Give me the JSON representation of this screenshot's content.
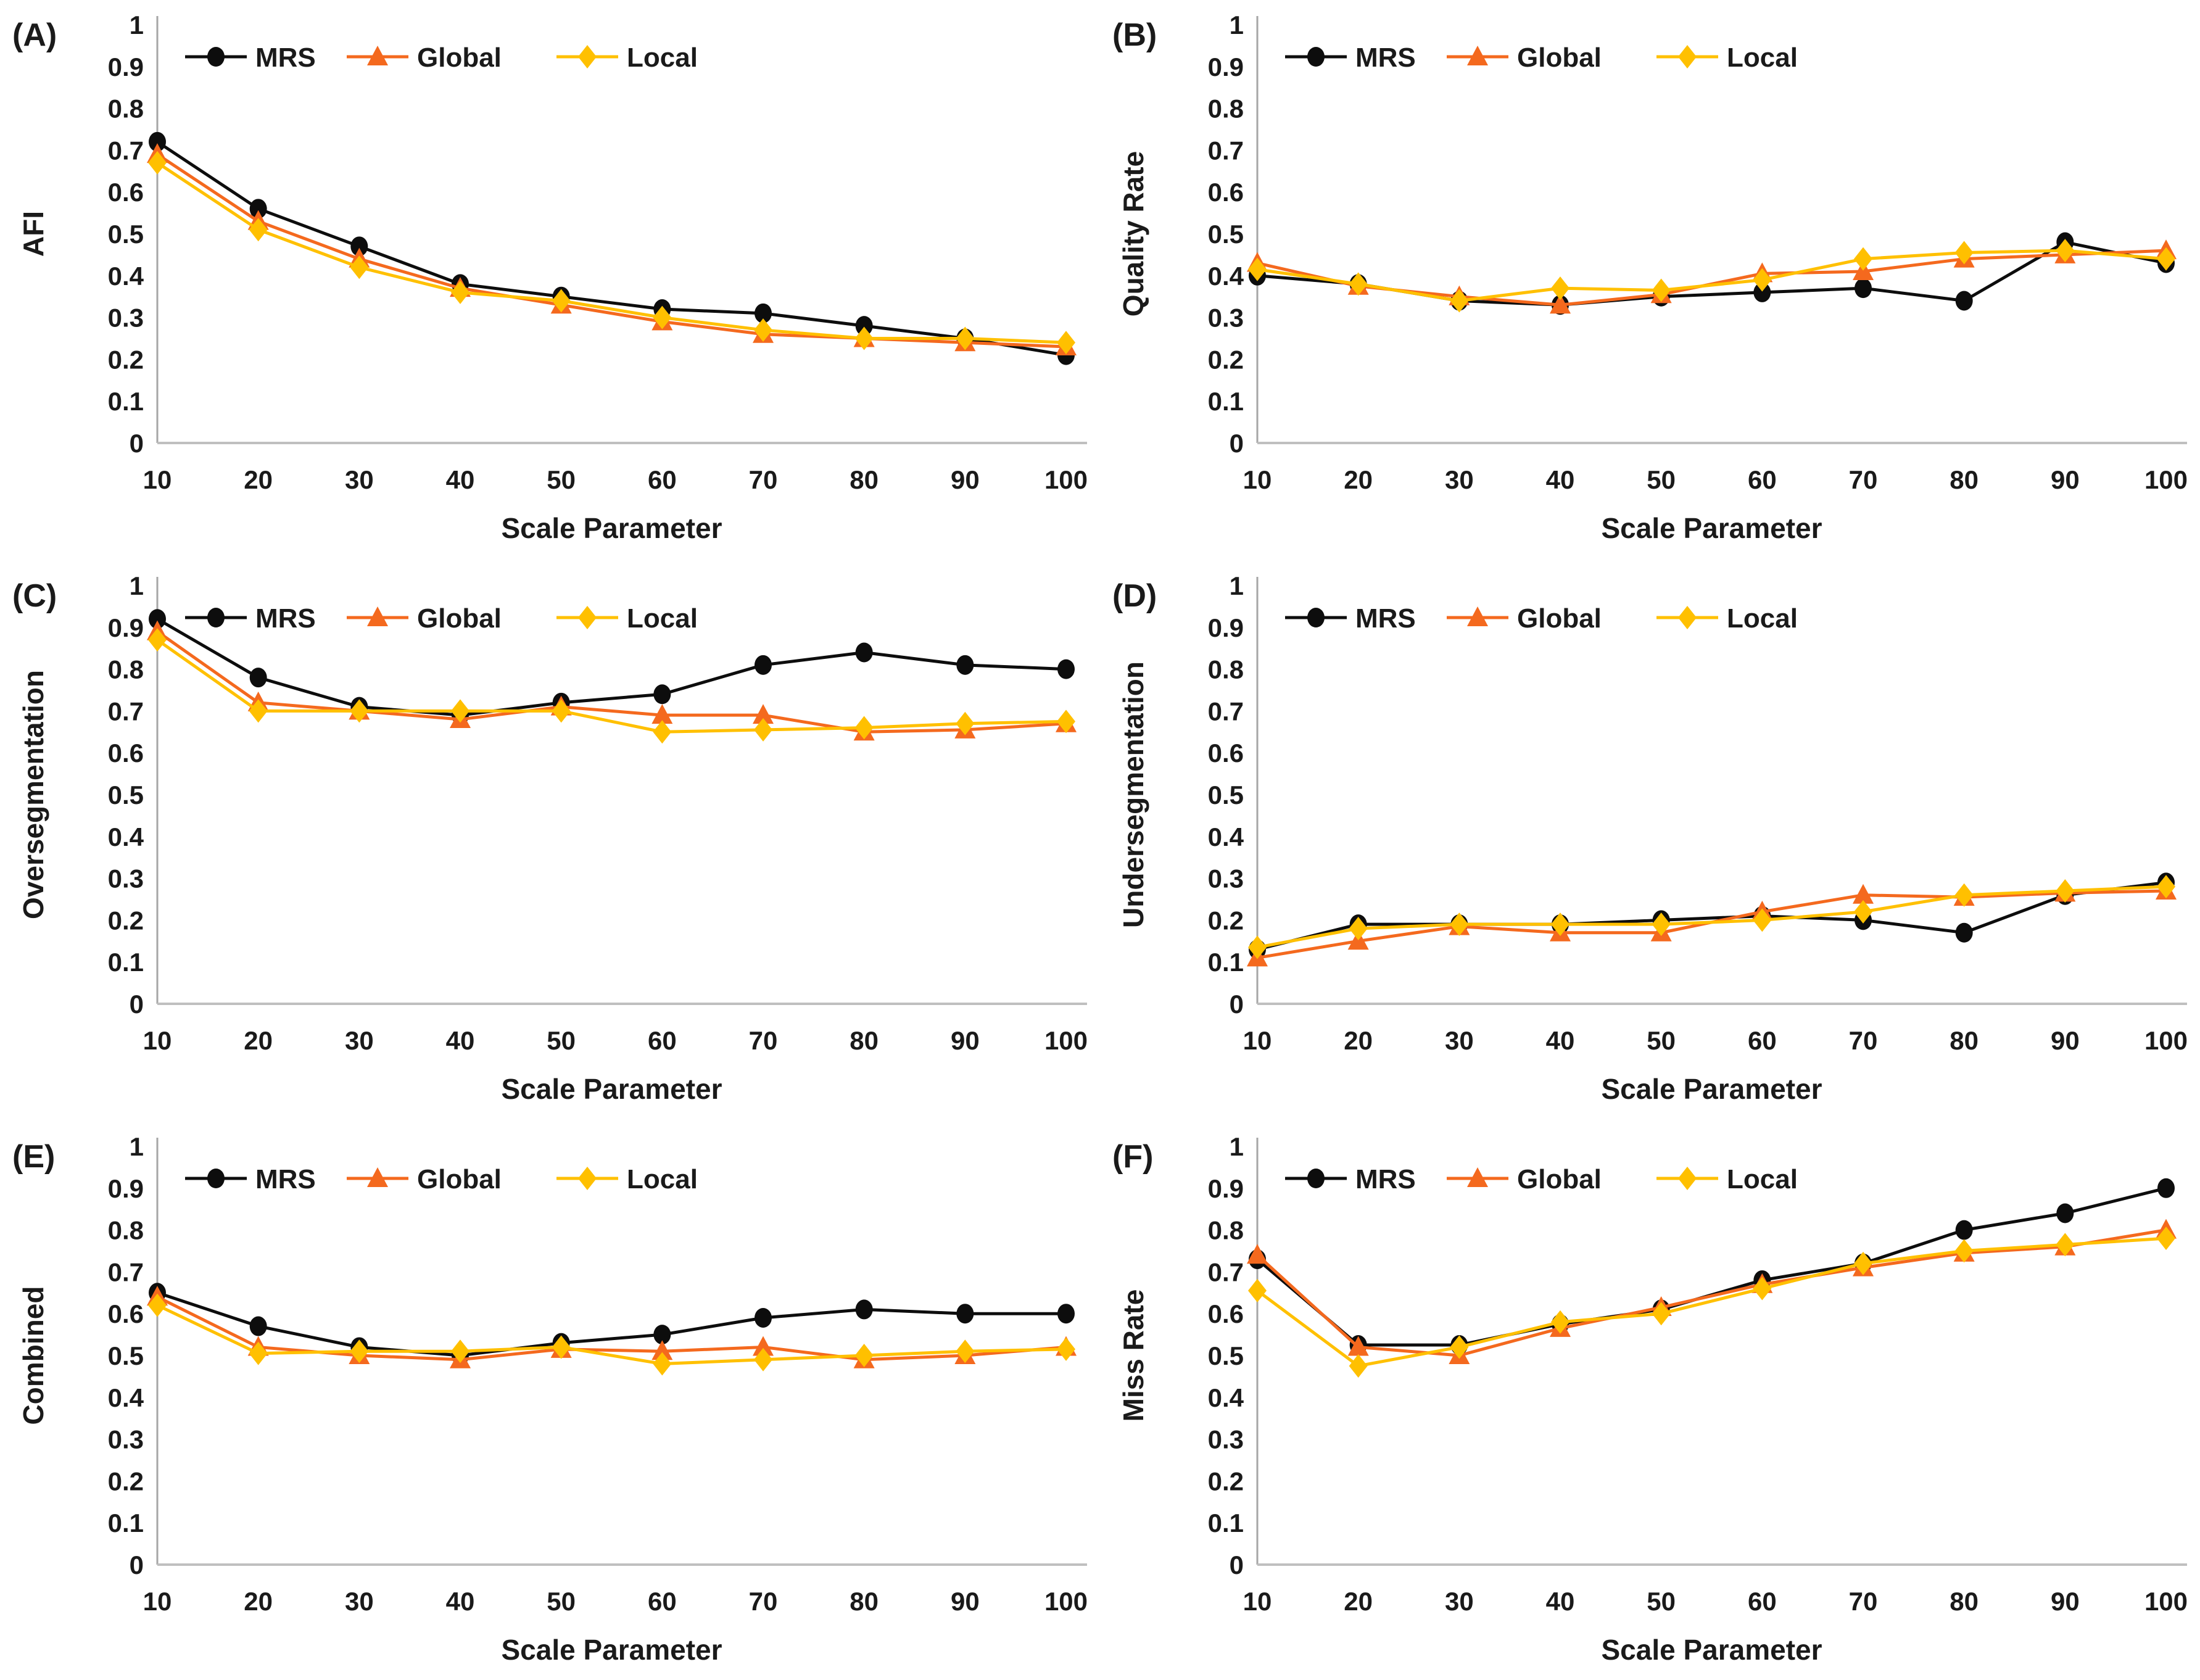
{
  "figure": {
    "xlabel": "Scale Parameter",
    "x_categories": [
      10,
      20,
      30,
      40,
      50,
      60,
      70,
      80,
      90,
      100
    ],
    "ylim": [
      0,
      1
    ],
    "ytick_step": 0.1,
    "grid": false,
    "legend_position": "top-inside",
    "colors": {
      "mrs": "#0d0d0d",
      "global": "#f4691e",
      "local": "#ffc000",
      "axis_line": "#a6a6a6",
      "baseline": "#bfbfbf",
      "text": "#1a1a1a"
    },
    "markers": {
      "mrs": "circle",
      "global": "triangle",
      "local": "diamond"
    },
    "legend_labels": [
      "MRS",
      "Global",
      "Local"
    ]
  },
  "chart_data": [
    {
      "type": "line",
      "panel_label": "(A)",
      "ylabel": "AFI",
      "xlabel": "Scale Parameter",
      "x": [
        10,
        20,
        30,
        40,
        50,
        60,
        70,
        80,
        90,
        100
      ],
      "ylim": [
        0,
        1
      ],
      "series": [
        {
          "name": "MRS",
          "color": "#0d0d0d",
          "marker": "circle",
          "values": [
            0.72,
            0.56,
            0.47,
            0.38,
            0.35,
            0.32,
            0.31,
            0.28,
            0.25,
            0.21
          ]
        },
        {
          "name": "Global",
          "color": "#f4691e",
          "marker": "triangle",
          "values": [
            0.69,
            0.53,
            0.44,
            0.37,
            0.33,
            0.29,
            0.26,
            0.25,
            0.24,
            0.23
          ]
        },
        {
          "name": "Local",
          "color": "#ffc000",
          "marker": "diamond",
          "values": [
            0.67,
            0.51,
            0.42,
            0.36,
            0.34,
            0.3,
            0.27,
            0.25,
            0.25,
            0.24
          ]
        }
      ]
    },
    {
      "type": "line",
      "panel_label": "(B)",
      "ylabel": "Quality Rate",
      "xlabel": "Scale Parameter",
      "x": [
        10,
        20,
        30,
        40,
        50,
        60,
        70,
        80,
        90,
        100
      ],
      "ylim": [
        0,
        1
      ],
      "series": [
        {
          "name": "MRS",
          "color": "#0d0d0d",
          "marker": "circle",
          "values": [
            0.4,
            0.38,
            0.34,
            0.33,
            0.35,
            0.36,
            0.37,
            0.34,
            0.48,
            0.43
          ]
        },
        {
          "name": "Global",
          "color": "#f4691e",
          "marker": "triangle",
          "values": [
            0.43,
            0.375,
            0.35,
            0.33,
            0.355,
            0.405,
            0.41,
            0.44,
            0.45,
            0.46
          ]
        },
        {
          "name": "Local",
          "color": "#ffc000",
          "marker": "diamond",
          "values": [
            0.415,
            0.38,
            0.34,
            0.37,
            0.365,
            0.39,
            0.44,
            0.455,
            0.46,
            0.44
          ]
        }
      ]
    },
    {
      "type": "line",
      "panel_label": "(C)",
      "ylabel": "Oversegmentation",
      "xlabel": "Scale Parameter",
      "x": [
        10,
        20,
        30,
        40,
        50,
        60,
        70,
        80,
        90,
        100
      ],
      "ylim": [
        0,
        1
      ],
      "series": [
        {
          "name": "MRS",
          "color": "#0d0d0d",
          "marker": "circle",
          "values": [
            0.92,
            0.78,
            0.71,
            0.69,
            0.72,
            0.74,
            0.81,
            0.84,
            0.81,
            0.8
          ]
        },
        {
          "name": "Global",
          "color": "#f4691e",
          "marker": "triangle",
          "values": [
            0.89,
            0.72,
            0.7,
            0.68,
            0.71,
            0.69,
            0.69,
            0.65,
            0.655,
            0.67
          ]
        },
        {
          "name": "Local",
          "color": "#ffc000",
          "marker": "diamond",
          "values": [
            0.87,
            0.7,
            0.7,
            0.7,
            0.7,
            0.65,
            0.655,
            0.66,
            0.67,
            0.675
          ]
        }
      ]
    },
    {
      "type": "line",
      "panel_label": "(D)",
      "ylabel": "Undersegmentation",
      "xlabel": "Scale Parameter",
      "x": [
        10,
        20,
        30,
        40,
        50,
        60,
        70,
        80,
        90,
        100
      ],
      "ylim": [
        0,
        1
      ],
      "series": [
        {
          "name": "MRS",
          "color": "#0d0d0d",
          "marker": "circle",
          "values": [
            0.13,
            0.19,
            0.19,
            0.19,
            0.2,
            0.21,
            0.2,
            0.17,
            0.26,
            0.29
          ]
        },
        {
          "name": "Global",
          "color": "#f4691e",
          "marker": "triangle",
          "values": [
            0.11,
            0.15,
            0.185,
            0.17,
            0.17,
            0.22,
            0.26,
            0.255,
            0.265,
            0.27
          ]
        },
        {
          "name": "Local",
          "color": "#ffc000",
          "marker": "diamond",
          "values": [
            0.135,
            0.18,
            0.19,
            0.19,
            0.19,
            0.2,
            0.22,
            0.26,
            0.27,
            0.28
          ]
        }
      ]
    },
    {
      "type": "line",
      "panel_label": "(E)",
      "ylabel": "Combined",
      "xlabel": "Scale Parameter",
      "x": [
        10,
        20,
        30,
        40,
        50,
        60,
        70,
        80,
        90,
        100
      ],
      "ylim": [
        0,
        1
      ],
      "series": [
        {
          "name": "MRS",
          "color": "#0d0d0d",
          "marker": "circle",
          "values": [
            0.65,
            0.57,
            0.52,
            0.5,
            0.53,
            0.55,
            0.59,
            0.61,
            0.6,
            0.6
          ]
        },
        {
          "name": "Global",
          "color": "#f4691e",
          "marker": "triangle",
          "values": [
            0.64,
            0.52,
            0.5,
            0.49,
            0.515,
            0.51,
            0.52,
            0.49,
            0.5,
            0.52
          ]
        },
        {
          "name": "Local",
          "color": "#ffc000",
          "marker": "diamond",
          "values": [
            0.62,
            0.505,
            0.51,
            0.51,
            0.52,
            0.48,
            0.49,
            0.5,
            0.51,
            0.515
          ]
        }
      ]
    },
    {
      "type": "line",
      "panel_label": "(F)",
      "ylabel": "Miss Rate",
      "xlabel": "Scale Parameter",
      "x": [
        10,
        20,
        30,
        40,
        50,
        60,
        70,
        80,
        90,
        100
      ],
      "ylim": [
        0,
        1
      ],
      "series": [
        {
          "name": "MRS",
          "color": "#0d0d0d",
          "marker": "circle",
          "values": [
            0.73,
            0.525,
            0.525,
            0.575,
            0.61,
            0.68,
            0.72,
            0.8,
            0.84,
            0.9
          ]
        },
        {
          "name": "Global",
          "color": "#f4691e",
          "marker": "triangle",
          "values": [
            0.74,
            0.52,
            0.5,
            0.565,
            0.615,
            0.67,
            0.71,
            0.745,
            0.76,
            0.8
          ]
        },
        {
          "name": "Local",
          "color": "#ffc000",
          "marker": "diamond",
          "values": [
            0.655,
            0.475,
            0.52,
            0.58,
            0.6,
            0.66,
            0.72,
            0.75,
            0.765,
            0.78
          ]
        }
      ]
    }
  ]
}
